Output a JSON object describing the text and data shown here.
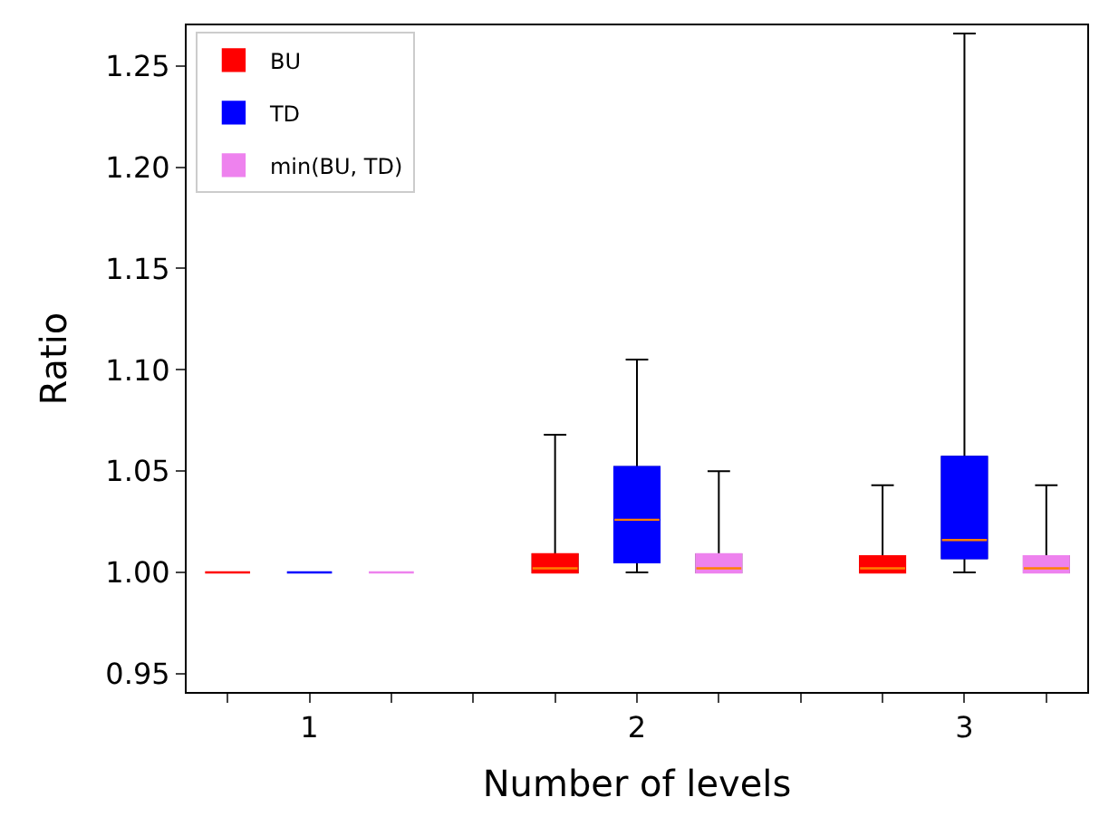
{
  "chart_data": {
    "type": "box",
    "xlabel": "Number of levels",
    "ylabel": "Ratio",
    "categories": [
      "1",
      "2",
      "3"
    ],
    "ylim": [
      0.941,
      1.27
    ],
    "yticks": [
      {
        "value": 0.95,
        "label": "0.95"
      },
      {
        "value": 1.0,
        "label": "1.00"
      },
      {
        "value": 1.05,
        "label": "1.05"
      },
      {
        "value": 1.1,
        "label": "1.10"
      },
      {
        "value": 1.15,
        "label": "1.15"
      },
      {
        "value": 1.2,
        "label": "1.20"
      },
      {
        "value": 1.25,
        "label": "1.25"
      }
    ],
    "legend": "top left",
    "series": [
      {
        "name": "BU",
        "color": "#ff0000",
        "boxes": [
          {
            "low": 1.0,
            "q1": 1.0,
            "median": 1.0,
            "q3": 1.0,
            "high": 1.0
          },
          {
            "low": 1.0,
            "q1": 1.0,
            "median": 1.002,
            "q3": 1.009,
            "high": 1.068
          },
          {
            "low": 1.0,
            "q1": 1.0,
            "median": 1.002,
            "q3": 1.008,
            "high": 1.043
          }
        ]
      },
      {
        "name": "TD",
        "color": "#0000ff",
        "boxes": [
          {
            "low": 1.0,
            "q1": 1.0,
            "median": 1.0,
            "q3": 1.0,
            "high": 1.0
          },
          {
            "low": 1.0,
            "q1": 1.005,
            "median": 1.026,
            "q3": 1.052,
            "high": 1.105
          },
          {
            "low": 1.0,
            "q1": 1.007,
            "median": 1.016,
            "q3": 1.057,
            "high": 1.266
          }
        ]
      },
      {
        "name": "min(BU, TD)",
        "color": "#ee82ee",
        "boxes": [
          {
            "low": 1.0,
            "q1": 1.0,
            "median": 1.0,
            "q3": 1.0,
            "high": 1.0
          },
          {
            "low": 1.0,
            "q1": 1.0,
            "median": 1.002,
            "q3": 1.009,
            "high": 1.05
          },
          {
            "low": 1.0,
            "q1": 1.0,
            "median": 1.002,
            "q3": 1.008,
            "high": 1.043
          }
        ]
      }
    ]
  }
}
